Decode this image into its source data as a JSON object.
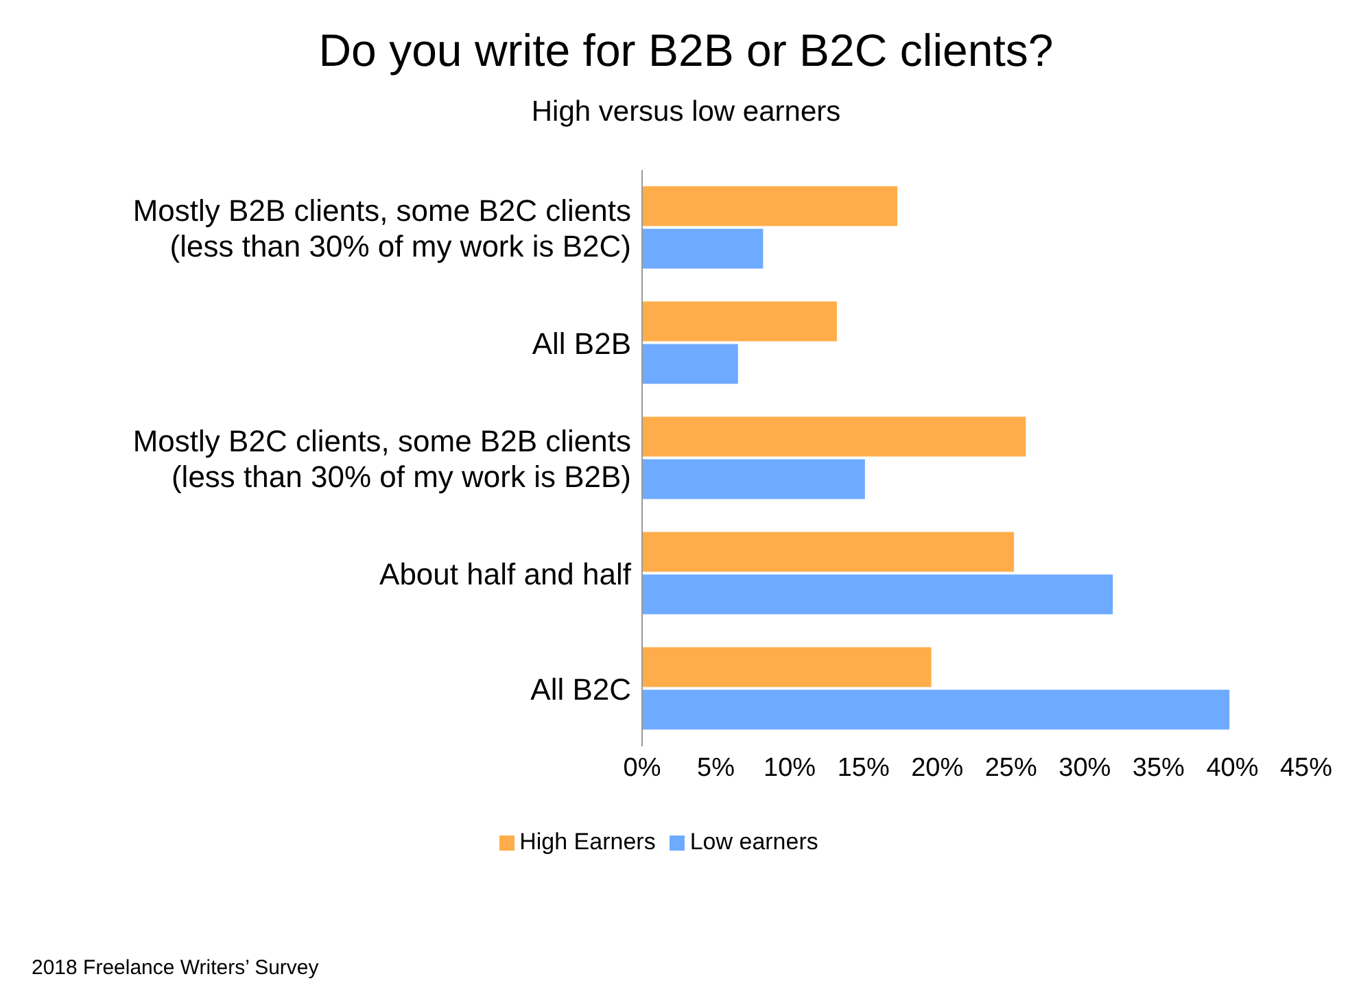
{
  "chart_data": {
    "type": "bar",
    "orientation": "horizontal",
    "title": "Do you write for B2B or B2C clients?",
    "subtitle": "High versus low earners",
    "categories": [
      "Mostly B2B clients, some B2C clients (less than 30% of my work is B2C)",
      "All B2B",
      "Mostly B2C clients, some B2B clients (less than 30% of my work is B2B)",
      "About half and half",
      "All B2C"
    ],
    "series": [
      {
        "name": "High Earners",
        "color": "#ffad4a",
        "values": [
          17.3,
          13.2,
          26.0,
          25.2,
          19.6
        ]
      },
      {
        "name": "Low earners",
        "color": "#6eaaff",
        "values": [
          8.2,
          6.5,
          15.1,
          31.9,
          39.8
        ]
      }
    ],
    "xlim": [
      0,
      45
    ],
    "xticks": [
      {
        "value": 0,
        "label": "0%"
      },
      {
        "value": 5,
        "label": "5%"
      },
      {
        "value": 10,
        "label": "10%"
      },
      {
        "value": 15,
        "label": "15%"
      },
      {
        "value": 20,
        "label": "20%"
      },
      {
        "value": 25,
        "label": "25%"
      },
      {
        "value": 30,
        "label": "30%"
      },
      {
        "value": 35,
        "label": "35%"
      },
      {
        "value": 40,
        "label": "40%"
      },
      {
        "value": 45,
        "label": "45%"
      }
    ],
    "grid": false,
    "legend": "bottom",
    "annotations": [
      "2018 Freelance Writers’ Survey"
    ]
  }
}
